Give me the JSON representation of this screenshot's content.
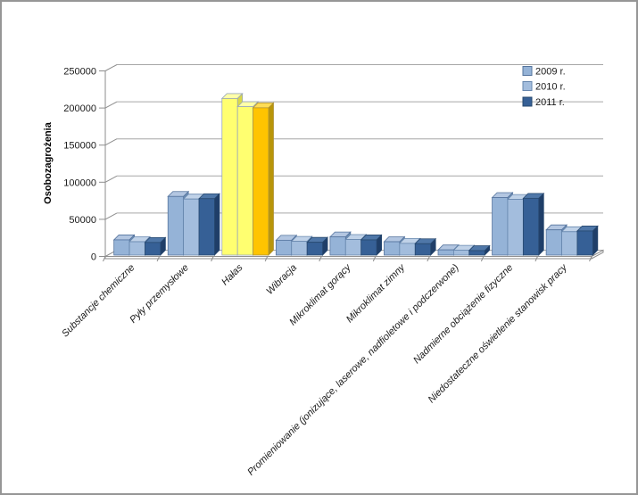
{
  "chart_data": {
    "type": "bar",
    "projection": "3d-column",
    "title": "",
    "ylabel": "Osobozagrożenia",
    "xlabel": "",
    "ylim": [
      0,
      250000
    ],
    "ytick_step": 50000,
    "ytick_labels": [
      "0",
      "50000",
      "100000",
      "150000",
      "200000",
      "250000"
    ],
    "grid": true,
    "legend_position": "top-right",
    "categories": [
      "Substancje chemiczne",
      "Pyły przemysłowe",
      "Hałas",
      "Wibracja",
      "Mikroklimat gorący",
      "Mikroklimat zimny",
      "Promieniowanie (jonizujące, laserowe, nadfioletowe i podczerwone)",
      "Nadmierne obciążenie fizyczne",
      "Niedostateczne oświetlenie stanowisk pracy"
    ],
    "series": [
      {
        "name": "2009 r.",
        "values": [
          20500,
          79000,
          211000,
          20000,
          24500,
          18000,
          7000,
          77500,
          34000
        ]
      },
      {
        "name": "2010 r.",
        "values": [
          18000,
          75500,
          200000,
          18500,
          21000,
          15800,
          6500,
          75000,
          31500
        ]
      },
      {
        "name": "2011 r.",
        "values": [
          17000,
          76000,
          198500,
          17200,
          20500,
          15300,
          6000,
          76500,
          32500
        ]
      }
    ],
    "highlight_category": "Hałas",
    "colors": {
      "series_faces": [
        {
          "front": "#95B3D7",
          "top": "#B3C6E1",
          "side": "#6E8EB4",
          "stroke": "#55749E"
        },
        {
          "front": "#A3BDDD",
          "top": "#C0D2E8",
          "side": "#7F9DC4",
          "stroke": "#6787AE"
        },
        {
          "front": "#366096",
          "top": "#4F77A8",
          "side": "#1F3E68",
          "stroke": "#27486F"
        }
      ],
      "highlight_faces": [
        {
          "front": "#FFFF70",
          "top": "#FFFFA8",
          "side": "#D9D948",
          "stroke": "#9AA7B8"
        },
        {
          "front": "#FFFF70",
          "top": "#FFFFA8",
          "side": "#D9D948",
          "stroke": "#9AA7B8"
        },
        {
          "front": "#FFC400",
          "top": "#FFDC55",
          "side": "#B8950A",
          "stroke": "#B09335"
        }
      ],
      "gridline": "#A6A6A6",
      "axis": "#8E8E8E",
      "text": "#1A1A1A"
    }
  }
}
